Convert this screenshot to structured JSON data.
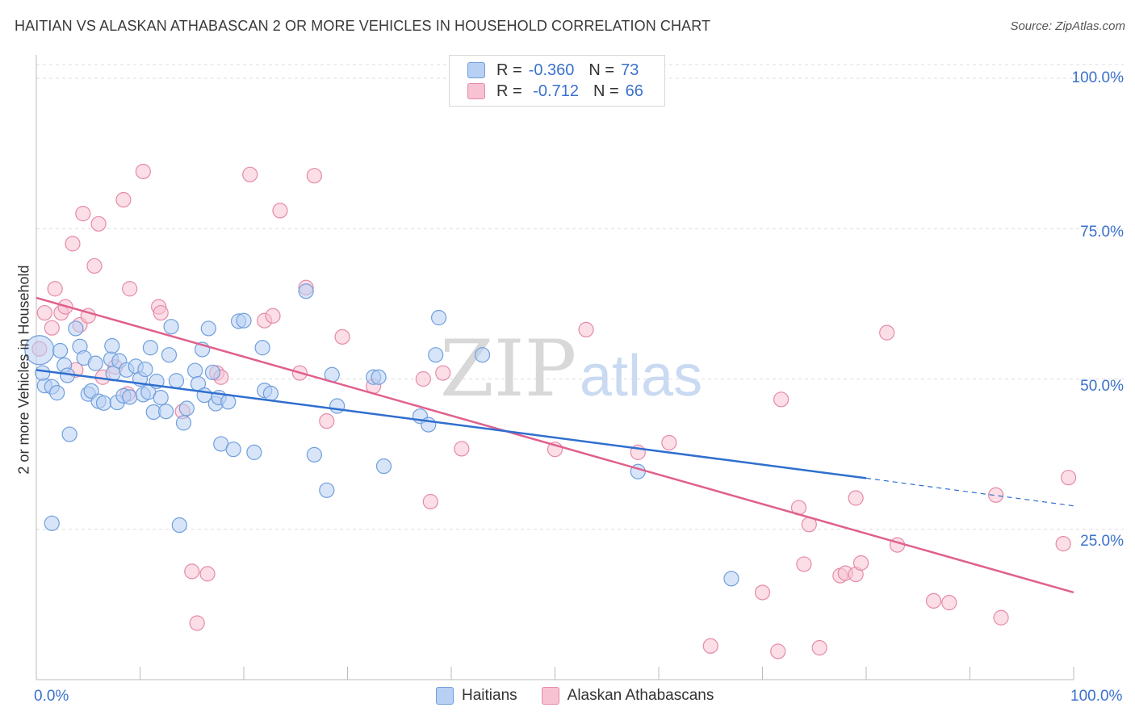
{
  "title": "HAITIAN VS ALASKAN ATHABASCAN 2 OR MORE VEHICLES IN HOUSEHOLD CORRELATION CHART",
  "source": "Source: ZipAtlas.com",
  "watermark": {
    "zip": "ZIP",
    "atlas": "atlas"
  },
  "legend": {
    "rows": [
      {
        "r_label": "R =",
        "r_value": "-0.360",
        "n_label": "N =",
        "n_value": "73"
      },
      {
        "r_label": "R =",
        "r_value": " -0.712",
        "n_label": "N =",
        "n_value": "66"
      }
    ]
  },
  "colors": {
    "blue_fill": "#b8d0f4",
    "blue_stroke": "#6f9fdc",
    "blue_line": "#2f6fcf",
    "pink_fill": "#f7c2d2",
    "pink_stroke": "#e58aa8",
    "pink_line": "#e0608c",
    "tick_text": "#3b71cc",
    "grid": "#dcdcdc"
  },
  "chart_data": {
    "type": "scatter",
    "xlabel": "",
    "ylabel": "2 or more Vehicles in Household",
    "xlim": [
      0,
      100
    ],
    "ylim": [
      0,
      100
    ],
    "x_tick_labels": [
      "0.0%",
      "100.0%"
    ],
    "y_tick_labels": [
      "25.0%",
      "50.0%",
      "75.0%",
      "100.0%"
    ],
    "y_ticks": [
      25,
      50,
      75,
      100
    ],
    "grid": true,
    "legend_position": "bottom-center",
    "series": [
      {
        "name": "Haitians",
        "color": "blue",
        "trend": {
          "x0": 0,
          "y0": 51.5,
          "x1": 80,
          "y1": 33.5,
          "dash_to_x": 100,
          "dash_to_y": 28.9
        },
        "points": [
          [
            0.3,
            54.8
          ],
          [
            0.8,
            48.9
          ],
          [
            0.6,
            51.0
          ],
          [
            1.5,
            48.7
          ],
          [
            2.0,
            47.7
          ],
          [
            2.3,
            54.7
          ],
          [
            2.7,
            52.3
          ],
          [
            3.0,
            50.6
          ],
          [
            3.8,
            58.4
          ],
          [
            4.2,
            55.4
          ],
          [
            4.6,
            53.5
          ],
          [
            5.0,
            47.5
          ],
          [
            5.3,
            48.0
          ],
          [
            5.7,
            52.6
          ],
          [
            6.0,
            46.3
          ],
          [
            6.5,
            46.0
          ],
          [
            7.2,
            53.3
          ],
          [
            7.4,
            50.9
          ],
          [
            7.8,
            46.1
          ],
          [
            7.3,
            55.5
          ],
          [
            8.0,
            53.0
          ],
          [
            8.4,
            47.2
          ],
          [
            8.7,
            51.5
          ],
          [
            9.0,
            47.0
          ],
          [
            9.6,
            52.1
          ],
          [
            10.0,
            50.0
          ],
          [
            10.3,
            47.4
          ],
          [
            10.5,
            51.6
          ],
          [
            10.8,
            47.8
          ],
          [
            11.0,
            55.2
          ],
          [
            11.3,
            44.5
          ],
          [
            11.6,
            49.6
          ],
          [
            12.0,
            46.9
          ],
          [
            12.5,
            44.6
          ],
          [
            12.8,
            54.0
          ],
          [
            13.0,
            58.7
          ],
          [
            13.5,
            49.7
          ],
          [
            13.8,
            25.7
          ],
          [
            14.2,
            42.7
          ],
          [
            14.5,
            45.1
          ],
          [
            15.3,
            51.4
          ],
          [
            15.6,
            49.2
          ],
          [
            16.0,
            54.9
          ],
          [
            16.2,
            47.3
          ],
          [
            16.6,
            58.4
          ],
          [
            17.0,
            51.1
          ],
          [
            17.3,
            45.9
          ],
          [
            17.6,
            46.9
          ],
          [
            17.8,
            39.2
          ],
          [
            18.5,
            46.2
          ],
          [
            19.0,
            38.3
          ],
          [
            19.5,
            59.6
          ],
          [
            20.0,
            59.7
          ],
          [
            21.0,
            37.8
          ],
          [
            21.8,
            55.2
          ],
          [
            22.0,
            48.1
          ],
          [
            22.6,
            47.6
          ],
          [
            26.0,
            64.6
          ],
          [
            26.8,
            37.4
          ],
          [
            28.0,
            31.5
          ],
          [
            28.5,
            50.7
          ],
          [
            29.0,
            45.5
          ],
          [
            32.5,
            50.3
          ],
          [
            33.0,
            50.3
          ],
          [
            33.5,
            35.5
          ],
          [
            37.0,
            43.8
          ],
          [
            37.8,
            42.4
          ],
          [
            38.8,
            60.2
          ],
          [
            38.5,
            54.0
          ],
          [
            43.0,
            54.0
          ],
          [
            3.2,
            40.8
          ],
          [
            1.5,
            26.0
          ],
          [
            58.0,
            34.6
          ],
          [
            67.0,
            16.8
          ]
        ]
      },
      {
        "name": "Alaskan Athabascans",
        "color": "pink",
        "trend": {
          "x0": 0,
          "y0": 63.5,
          "x1": 100,
          "y1": 14.5
        },
        "points": [
          [
            0.3,
            55.0
          ],
          [
            0.8,
            61.0
          ],
          [
            1.5,
            58.5
          ],
          [
            1.8,
            65.0
          ],
          [
            2.4,
            61.0
          ],
          [
            2.8,
            62.0
          ],
          [
            3.5,
            72.5
          ],
          [
            3.8,
            51.5
          ],
          [
            4.2,
            59.0
          ],
          [
            4.5,
            77.5
          ],
          [
            5.0,
            60.5
          ],
          [
            5.6,
            68.8
          ],
          [
            6.0,
            75.8
          ],
          [
            6.4,
            50.3
          ],
          [
            7.6,
            52.0
          ],
          [
            8.4,
            79.8
          ],
          [
            8.8,
            47.5
          ],
          [
            9.0,
            65.0
          ],
          [
            10.3,
            84.5
          ],
          [
            11.8,
            62.0
          ],
          [
            12.0,
            61.0
          ],
          [
            14.1,
            44.6
          ],
          [
            15.0,
            18.0
          ],
          [
            15.5,
            9.4
          ],
          [
            16.5,
            17.6
          ],
          [
            17.4,
            51.0
          ],
          [
            17.8,
            50.3
          ],
          [
            20.6,
            84.0
          ],
          [
            22.0,
            59.7
          ],
          [
            22.8,
            60.5
          ],
          [
            23.5,
            78.0
          ],
          [
            25.4,
            51.0
          ],
          [
            26.0,
            65.2
          ],
          [
            26.8,
            83.8
          ],
          [
            28.0,
            43.0
          ],
          [
            29.5,
            57.0
          ],
          [
            32.5,
            48.8
          ],
          [
            37.3,
            50.0
          ],
          [
            38.0,
            29.6
          ],
          [
            39.2,
            51.0
          ],
          [
            41.0,
            38.4
          ],
          [
            50.0,
            38.3
          ],
          [
            53.0,
            58.2
          ],
          [
            58.0,
            37.8
          ],
          [
            61.0,
            39.4
          ],
          [
            65.0,
            5.6
          ],
          [
            70.0,
            14.5
          ],
          [
            71.5,
            4.7
          ],
          [
            71.8,
            46.6
          ],
          [
            73.5,
            28.6
          ],
          [
            74.0,
            19.2
          ],
          [
            74.5,
            25.8
          ],
          [
            75.5,
            5.3
          ],
          [
            77.5,
            17.3
          ],
          [
            78.0,
            17.7
          ],
          [
            79.0,
            17.5
          ],
          [
            79.5,
            19.4
          ],
          [
            79.0,
            30.2
          ],
          [
            82.0,
            57.7
          ],
          [
            83.0,
            22.4
          ],
          [
            86.5,
            13.1
          ],
          [
            88.0,
            12.8
          ],
          [
            92.5,
            30.7
          ],
          [
            93.0,
            10.3
          ],
          [
            99.0,
            22.6
          ],
          [
            99.5,
            33.6
          ]
        ]
      }
    ]
  }
}
